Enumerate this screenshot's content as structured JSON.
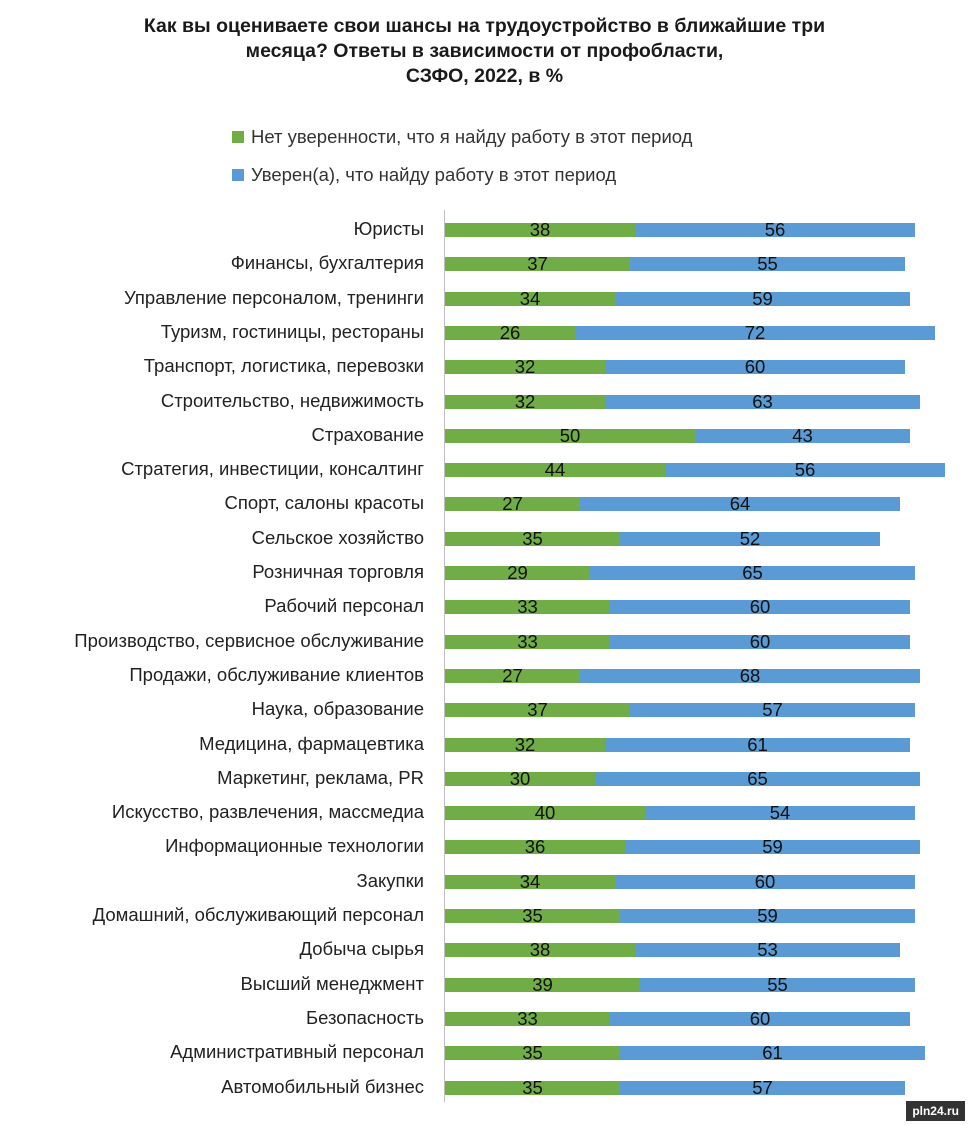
{
  "chart_data": {
    "type": "bar",
    "title_lines": [
      "Как вы оцениваете свои шансы на трудоустройство в ближайшие три",
      "месяца? Ответы в зависимости от профобласти,",
      "СЗФО, 2022, в %"
    ],
    "orientation": "horizontal",
    "stacked": true,
    "xlim": [
      0,
      100
    ],
    "legend_position": "top",
    "categories": [
      "Юристы",
      "Финансы, бухгалтерия",
      "Управление персоналом, тренинги",
      "Туризм, гостиницы, рестораны",
      "Транспорт, логистика, перевозки",
      "Строительство, недвижимость",
      "Страхование",
      "Стратегия, инвестиции, консалтинг",
      "Спорт, салоны красоты",
      "Сельское хозяйство",
      "Розничная торговля",
      "Рабочий персонал",
      "Производство, сервисное обслуживание",
      "Продажи, обслуживание клиентов",
      "Наука, образование",
      "Медицина, фармацевтика",
      "Маркетинг, реклама, PR",
      "Искусство, развлечения, массмедиа",
      "Информационные технологии",
      "Закупки",
      "Домашний, обслуживающий персонал",
      "Добыча сырья",
      "Высший менеджмент",
      "Безопасность",
      "Административный персонал",
      "Автомобильный бизнес"
    ],
    "series": [
      {
        "name": "Нет уверенности, что я найду работу в этот период",
        "color": "#70ad47",
        "values": [
          38,
          37,
          34,
          26,
          32,
          32,
          50,
          44,
          27,
          35,
          29,
          33,
          33,
          27,
          37,
          32,
          30,
          40,
          36,
          34,
          35,
          38,
          39,
          33,
          35,
          35
        ]
      },
      {
        "name": "Уверен(а), что найду работу в этот период",
        "color": "#5b9bd5",
        "values": [
          56,
          55,
          59,
          72,
          60,
          63,
          43,
          56,
          64,
          52,
          65,
          60,
          60,
          68,
          57,
          61,
          65,
          54,
          59,
          60,
          59,
          53,
          55,
          60,
          61,
          57
        ]
      }
    ]
  },
  "watermark": "pln24.ru"
}
